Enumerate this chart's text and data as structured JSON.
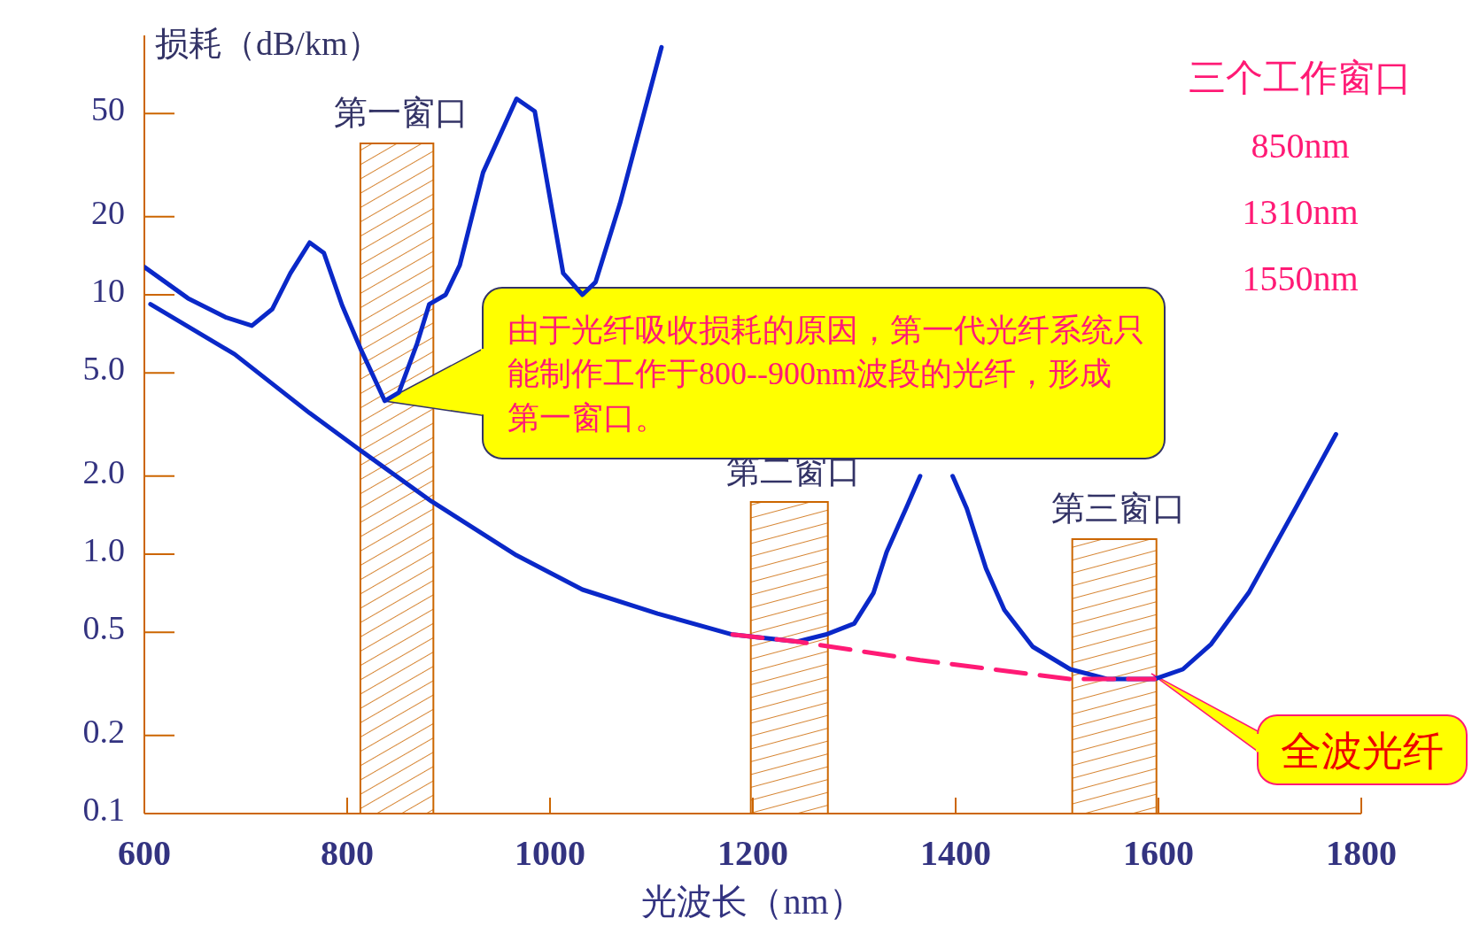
{
  "chart_data": {
    "type": "line",
    "xlabel": "光波长（nm）",
    "ylabel": "损耗（dB/km）",
    "log": "y",
    "xlim": [
      600,
      1800
    ],
    "xticks": [
      600,
      800,
      1000,
      1200,
      1400,
      1600,
      1800
    ],
    "ylim": [
      0.1,
      100
    ],
    "yticks": [
      0.1,
      0.2,
      0.5,
      {
        "value": 1,
        "label": "1.0"
      },
      {
        "value": 2,
        "label": "2.0"
      },
      {
        "value": 5,
        "label": "5.0"
      },
      10,
      20,
      50
    ],
    "grid": false,
    "series": [
      {
        "x": [
          600,
          643,
          680,
          706,
          726,
          744,
          763,
          777,
          795,
          814,
          837,
          851,
          869,
          881,
          897,
          911,
          934,
          967,
          985,
          999,
          1013,
          1032,
          1045,
          1069,
          1110
        ],
        "values": [
          12.8,
          9.7,
          8.2,
          7.6,
          8.8,
          12.1,
          15.9,
          14.5,
          9.1,
          6.1,
          3.9,
          4.2,
          6.5,
          9.2,
          10,
          13,
          29.6,
          57,
          51,
          24.7,
          12.1,
          10,
          11.2,
          22.5,
          90
        ],
        "color": "#0a28c8"
      },
      {
        "x": [
          606,
          689,
          763,
          814,
          883,
          967,
          1032,
          1106,
          1180,
          1244,
          1272,
          1300,
          1319,
          1332,
          1351,
          1365
        ],
        "values": [
          9.2,
          5.9,
          3.5,
          2.5,
          1.6,
          0.99,
          0.73,
          0.59,
          0.49,
          0.46,
          0.49,
          0.54,
          0.71,
          1.02,
          1.5,
          2.0
        ],
        "color": "#0a28c8"
      },
      {
        "x": [
          1397,
          1411,
          1430,
          1448,
          1476,
          1513,
          1550,
          1596,
          1624,
          1652,
          1689,
          1735,
          1775
        ],
        "values": [
          2.0,
          1.5,
          0.88,
          0.61,
          0.44,
          0.36,
          0.33,
          0.33,
          0.36,
          0.45,
          0.71,
          1.5,
          2.9
        ],
        "color": "#0a28c8"
      },
      {
        "x": [
          1180,
          1244,
          1365,
          1513,
          1596
        ],
        "values": [
          0.49,
          0.46,
          0.39,
          0.33,
          0.33
        ],
        "color": "#ff1a75",
        "line_style": "dashed"
      }
    ],
    "bands": [
      {
        "axis": "x",
        "from": 813,
        "to": 885,
        "label": "第一窗口",
        "color": "#cc6600"
      },
      {
        "axis": "x",
        "from": 1198,
        "to": 1274,
        "label": "第二窗口",
        "color": "#cc6600"
      },
      {
        "axis": "x",
        "from": 1515,
        "to": 1598,
        "label": "第三窗口",
        "color": "#cc6600"
      }
    ],
    "annotations": [
      "由于光纤吸收损耗的原因，第一代光纤系统只能制作工作于800--900nm波段的光纤，形成第一窗口。",
      "全波光纤",
      "三个工作窗口",
      "850nm",
      "1310nm",
      "1550nm"
    ]
  }
}
